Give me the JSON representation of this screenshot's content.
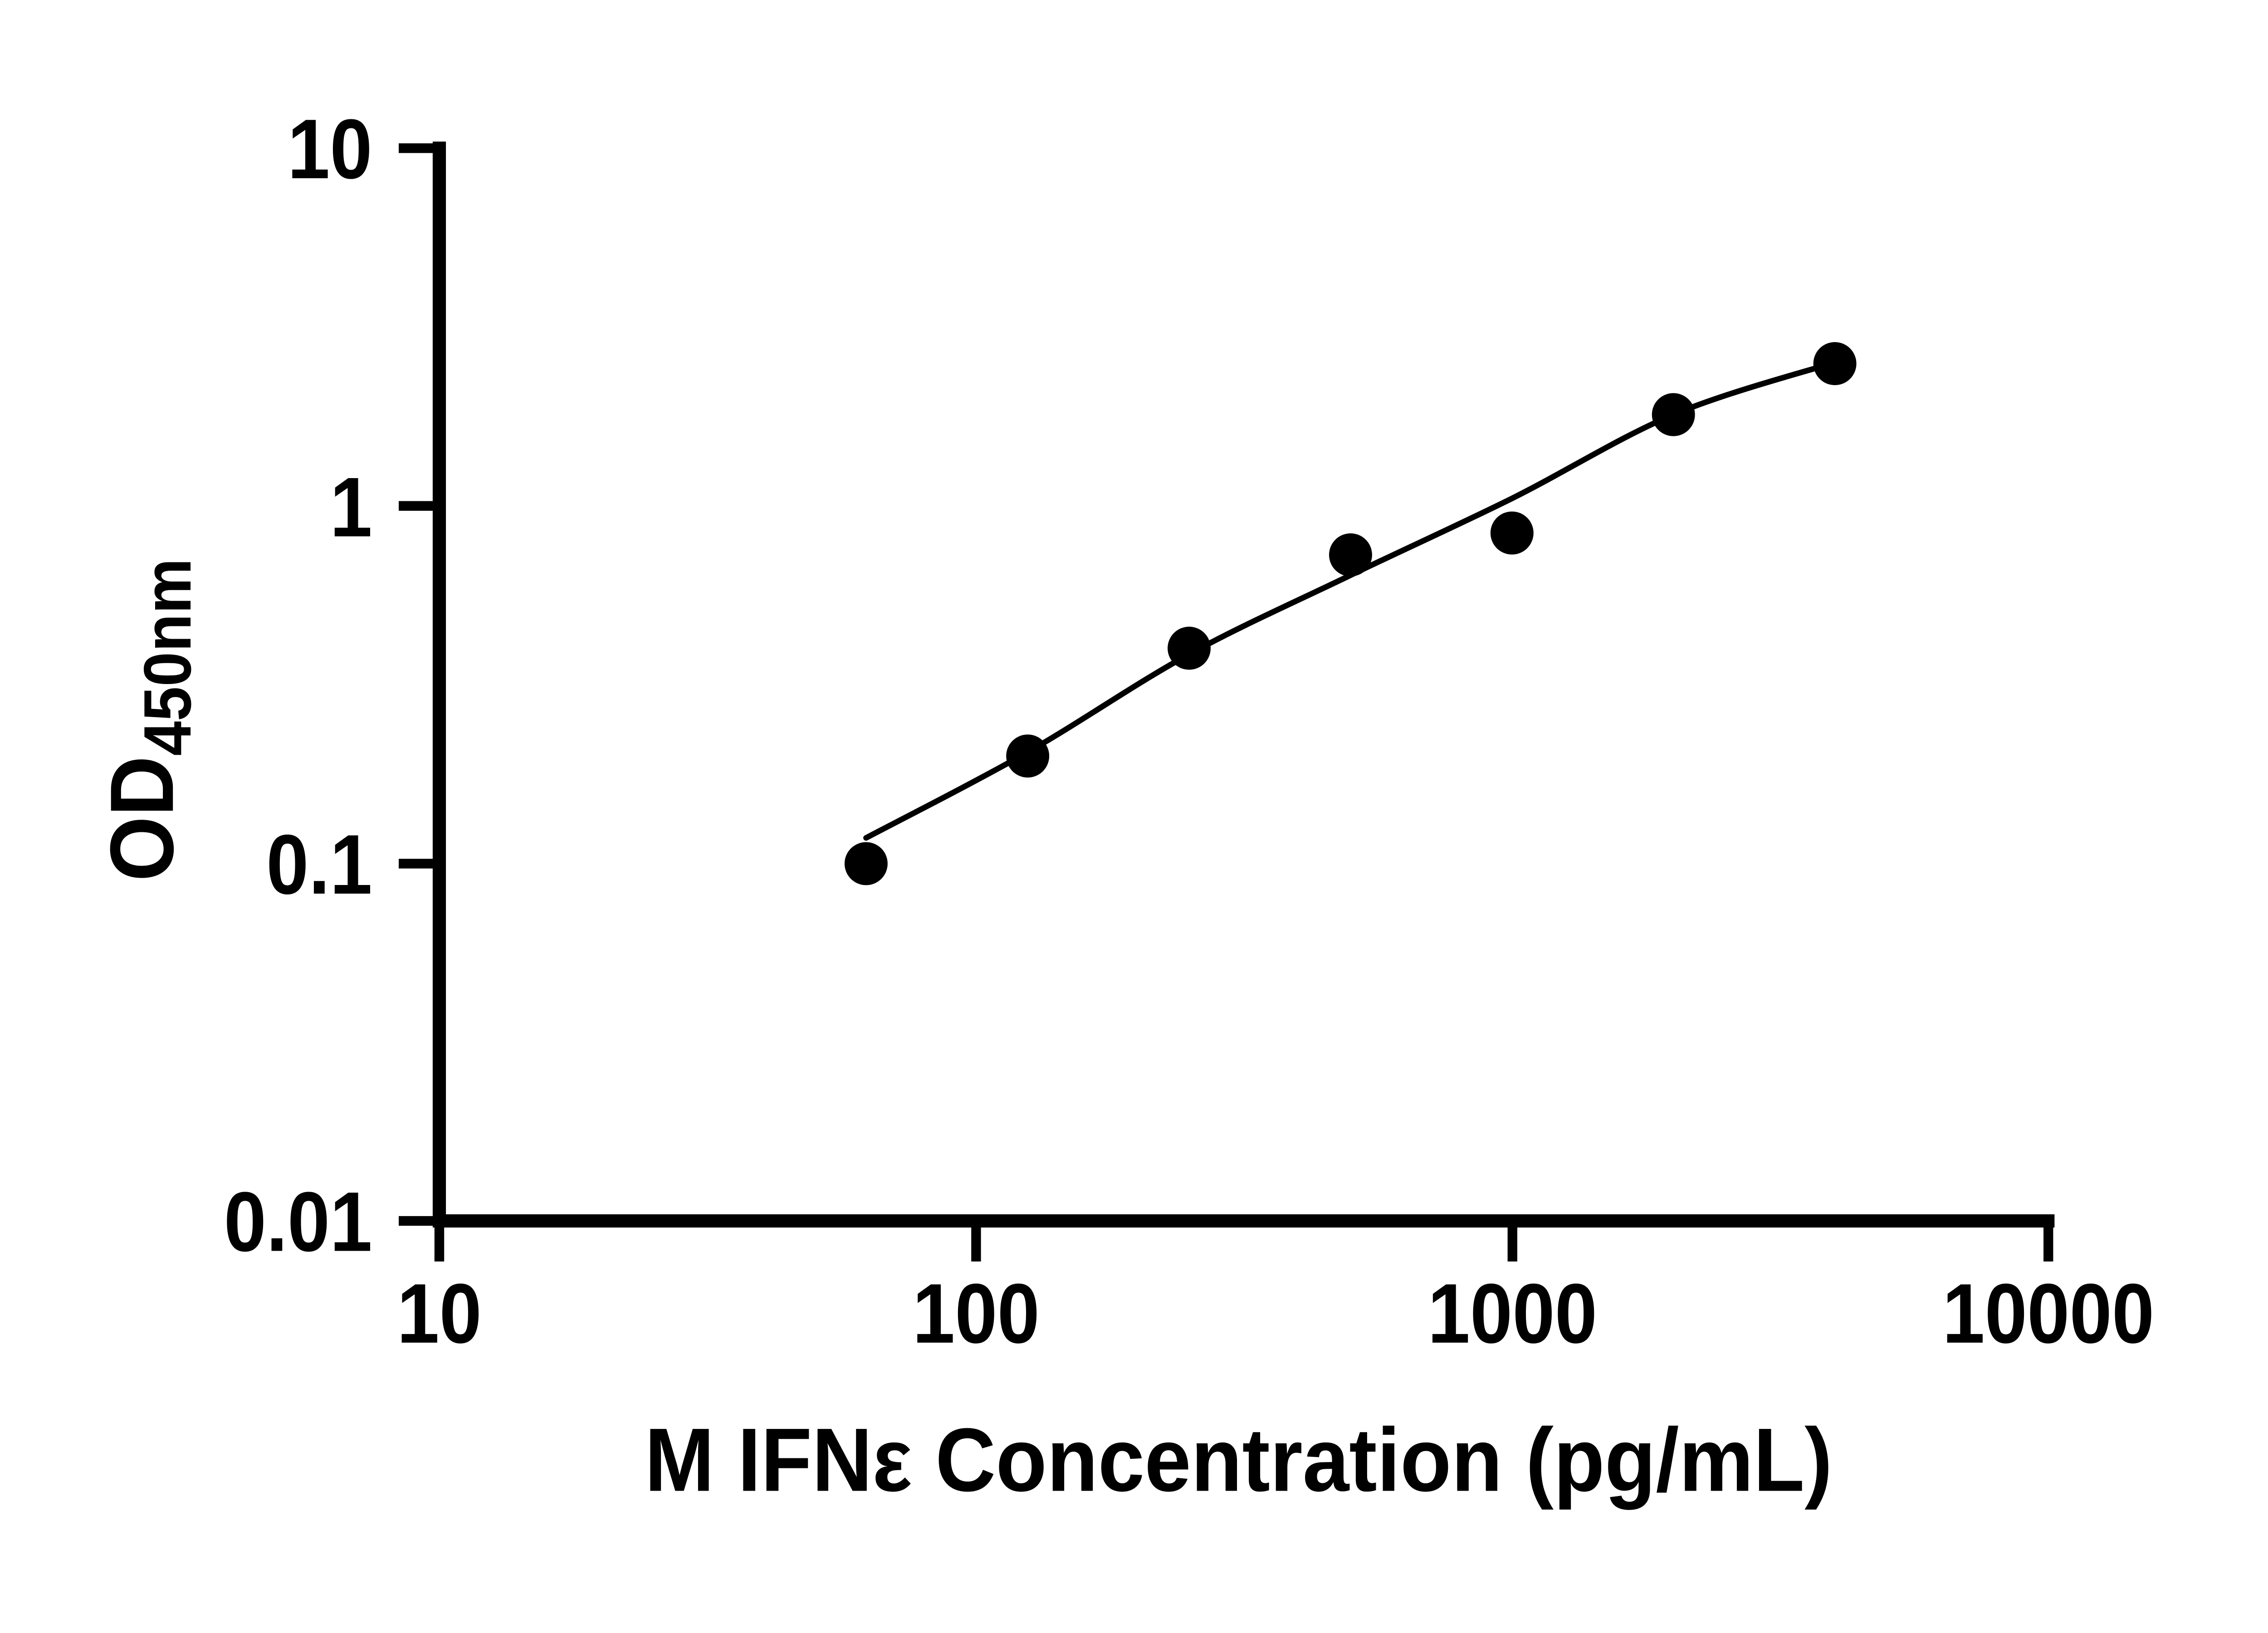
{
  "figure": {
    "background": "#ffffff",
    "foreground": "#000000"
  },
  "chart_data": {
    "type": "scatter",
    "title": "",
    "xlabel": "M IFNε Concentration (pg/mL)",
    "ylabel": "OD450nm",
    "ylabel_main": "OD",
    "ylabel_sub": "450nm",
    "x_scale": "log",
    "y_scale": "log",
    "xlim": [
      10,
      10000
    ],
    "ylim": [
      0.01,
      10
    ],
    "x_ticks": [
      10,
      100,
      1000,
      10000
    ],
    "y_ticks": [
      10,
      1,
      0.1,
      0.01
    ],
    "x_tick_labels": [
      "10",
      "100",
      "1000",
      "10000"
    ],
    "y_tick_labels": [
      "10",
      "1",
      "0.1",
      "0.01"
    ],
    "grid": false,
    "legend": false,
    "series": [
      {
        "name": "standard-curve-points",
        "marker": "filled-circle",
        "x": [
          62.5,
          125,
          250,
          500,
          1000,
          2000,
          4000
        ],
        "y": [
          0.1,
          0.2,
          0.4,
          0.73,
          0.84,
          1.8,
          2.5
        ]
      }
    ],
    "fit_line": {
      "name": "fitted-curve",
      "x": [
        62.5,
        125,
        250,
        500,
        1000,
        2000,
        4000
      ],
      "y": [
        0.118,
        0.205,
        0.385,
        0.64,
        1.05,
        1.8,
        2.52
      ]
    },
    "marker_color": "#000000",
    "line_color": "#000000",
    "axis_color": "#000000"
  }
}
